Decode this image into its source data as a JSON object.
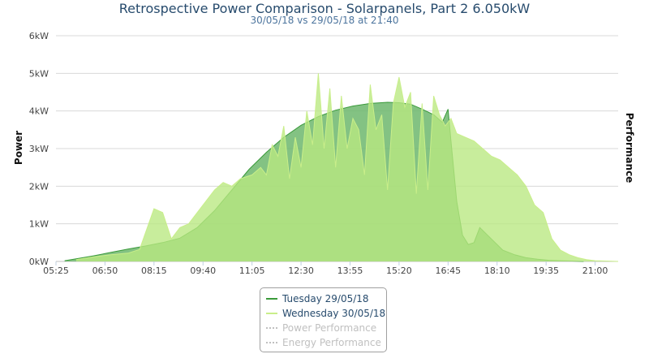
{
  "chart_data": {
    "type": "area",
    "title": "Retrospective Power Comparison - Solarpanels, Part 2 6.050kW",
    "subtitle": "30/05/18 vs 29/05/18 at 21:40",
    "ylabel": "Power",
    "y2label": "Performance",
    "ylim": [
      0,
      6
    ],
    "xlim": [
      "05:25",
      "21:40"
    ],
    "y_ticks": [
      "0kW",
      "1kW",
      "2kW",
      "3kW",
      "4kW",
      "5kW",
      "6kW"
    ],
    "x_ticks": [
      "05:25",
      "06:50",
      "08:15",
      "09:40",
      "11:05",
      "12:30",
      "13:55",
      "15:20",
      "16:45",
      "18:10",
      "19:35",
      "21:00"
    ],
    "grid": true,
    "colors": {
      "tuesday_line": "#3a9a3a",
      "tuesday_fill": "#6db76d",
      "wednesday_line": "#c9ee8a",
      "wednesday_fill": "#b8e880",
      "grid": "#d8d8d8",
      "inactive": "#c0c0c0"
    },
    "series": [
      {
        "name": "Tuesday 29/05/18",
        "x": [
          "05:40",
          "06:00",
          "06:30",
          "07:00",
          "07:30",
          "08:00",
          "08:30",
          "09:00",
          "09:30",
          "10:00",
          "10:30",
          "11:00",
          "11:30",
          "12:00",
          "12:30",
          "13:00",
          "13:30",
          "14:00",
          "14:30",
          "15:00",
          "15:20",
          "15:40",
          "16:00",
          "16:20",
          "16:35",
          "16:45",
          "16:50",
          "17:00",
          "17:10",
          "17:20",
          "17:30",
          "17:40",
          "18:00",
          "18:20",
          "18:40",
          "19:00",
          "19:20",
          "19:40",
          "20:00",
          "20:20",
          "20:40"
        ],
        "values": [
          0.02,
          0.07,
          0.15,
          0.24,
          0.33,
          0.41,
          0.5,
          0.62,
          0.9,
          1.35,
          1.9,
          2.45,
          2.9,
          3.3,
          3.62,
          3.85,
          4.02,
          4.13,
          4.2,
          4.23,
          4.22,
          4.18,
          4.05,
          3.9,
          3.7,
          4.05,
          3.2,
          1.6,
          0.7,
          0.45,
          0.5,
          0.9,
          0.6,
          0.3,
          0.18,
          0.1,
          0.06,
          0.03,
          0.02,
          0.01,
          0
        ]
      },
      {
        "name": "Wednesday 30/05/18",
        "x": [
          "06:00",
          "06:30",
          "07:00",
          "07:30",
          "07:50",
          "08:15",
          "08:30",
          "08:45",
          "09:00",
          "09:15",
          "09:30",
          "09:50",
          "10:00",
          "10:15",
          "10:30",
          "10:45",
          "11:05",
          "11:20",
          "11:30",
          "11:40",
          "11:50",
          "12:00",
          "12:10",
          "12:20",
          "12:30",
          "12:40",
          "12:50",
          "13:00",
          "13:10",
          "13:20",
          "13:30",
          "13:40",
          "13:50",
          "14:00",
          "14:10",
          "14:20",
          "14:30",
          "14:40",
          "14:50",
          "15:00",
          "15:10",
          "15:20",
          "15:30",
          "15:40",
          "15:50",
          "16:00",
          "16:10",
          "16:20",
          "16:30",
          "16:40",
          "16:50",
          "17:00",
          "17:15",
          "17:30",
          "17:45",
          "18:00",
          "18:15",
          "18:30",
          "18:45",
          "19:00",
          "19:15",
          "19:30",
          "19:45",
          "20:00",
          "20:15",
          "20:30",
          "20:45",
          "21:00",
          "21:20",
          "21:40"
        ],
        "values": [
          0.05,
          0.12,
          0.18,
          0.22,
          0.32,
          1.4,
          1.3,
          0.6,
          0.9,
          1.0,
          1.3,
          1.7,
          1.9,
          2.1,
          2.0,
          2.2,
          2.3,
          2.5,
          2.3,
          3.1,
          2.8,
          3.6,
          2.2,
          3.3,
          2.5,
          4.0,
          3.1,
          5.0,
          3.0,
          4.6,
          2.5,
          4.4,
          3.0,
          3.8,
          3.5,
          2.3,
          4.7,
          3.5,
          3.9,
          1.9,
          4.2,
          4.9,
          4.1,
          4.5,
          1.8,
          4.2,
          1.9,
          4.4,
          3.9,
          3.6,
          3.8,
          3.4,
          3.3,
          3.2,
          3.0,
          2.8,
          2.7,
          2.5,
          2.3,
          2.0,
          1.5,
          1.3,
          0.6,
          0.3,
          0.18,
          0.1,
          0.05,
          0.02,
          0.01,
          0
        ]
      }
    ]
  },
  "legend": {
    "items": [
      {
        "label": "Tuesday 29/05/18",
        "active": true
      },
      {
        "label": "Wednesday 30/05/18",
        "active": true
      },
      {
        "label": "Power Performance",
        "active": false
      },
      {
        "label": "Energy Performance",
        "active": false
      }
    ]
  }
}
